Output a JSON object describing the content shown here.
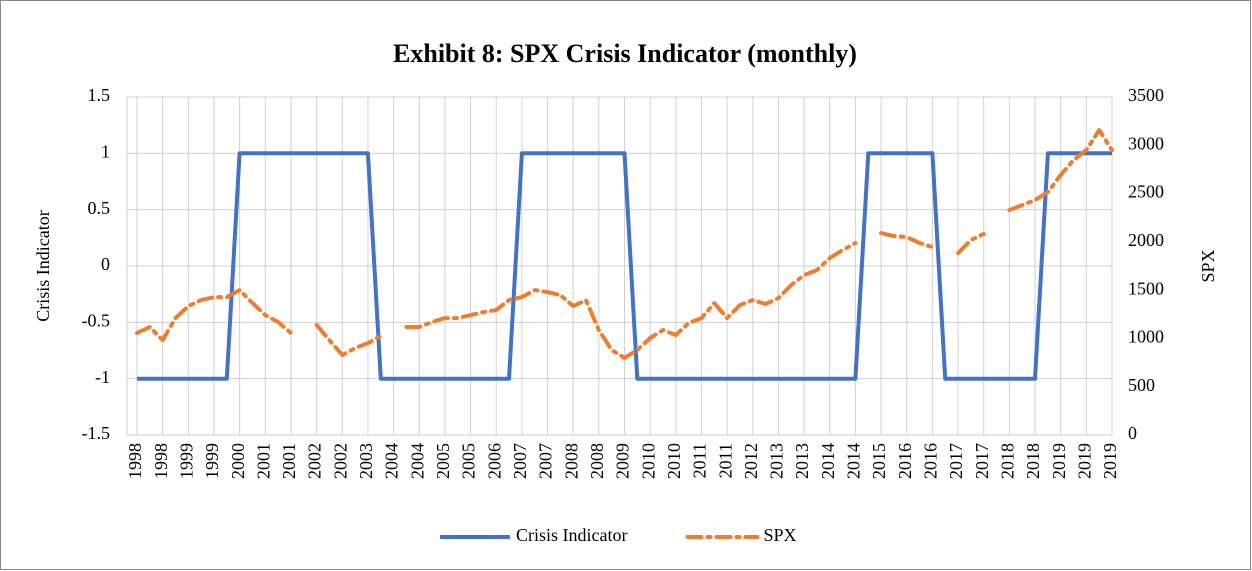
{
  "chart_data": {
    "type": "line",
    "title": "Exhibit 8: SPX Crisis Indicator (monthly)",
    "y_label": "Crisis Indicator",
    "y2_label": "SPX",
    "categories": [
      "1998",
      null,
      "1998",
      null,
      "1999",
      null,
      "1999",
      null,
      "2000",
      null,
      "2001",
      null,
      "2001",
      null,
      "2002",
      null,
      "2002",
      null,
      "2003",
      null,
      "2004",
      null,
      "2004",
      null,
      "2005",
      null,
      "2005",
      null,
      "2006",
      null,
      "2007",
      null,
      "2007",
      null,
      "2008",
      null,
      "2008",
      null,
      "2009",
      null,
      "2010",
      null,
      "2010",
      null,
      "2011",
      null,
      "2011",
      null,
      "2012",
      null,
      "2013",
      null,
      "2013",
      null,
      "2014",
      null,
      "2014",
      null,
      "2015",
      null,
      "2016",
      null,
      "2016",
      null,
      "2017",
      null,
      "2017",
      null,
      "2018",
      null,
      "2018",
      null,
      "2019",
      null,
      "2019",
      null,
      "2019"
    ],
    "series": [
      {
        "name": "Crisis Indicator",
        "color": "#4472c4",
        "axis": "y",
        "values": [
          -1,
          -1,
          -1,
          -1,
          -1,
          -1,
          -1,
          -1,
          1,
          1,
          1,
          1,
          1,
          1,
          1,
          1,
          1,
          1,
          1,
          -1,
          -1,
          -1,
          -1,
          -1,
          -1,
          -1,
          -1,
          -1,
          -1,
          -1,
          1,
          1,
          1,
          1,
          1,
          1,
          1,
          1,
          1,
          -1,
          -1,
          -1,
          -1,
          -1,
          -1,
          -1,
          -1,
          -1,
          -1,
          -1,
          -1,
          -1,
          -1,
          -1,
          -1,
          -1,
          -1,
          1,
          1,
          1,
          1,
          1,
          1,
          -1,
          -1,
          -1,
          -1,
          -1,
          -1,
          -1,
          -1,
          1,
          1,
          1,
          1,
          1,
          1
        ]
      },
      {
        "name": "SPX",
        "color": "#ed7d31",
        "axis": "y2",
        "dashed": true,
        "values": [
          1056,
          1118,
          983,
          1211,
          1335,
          1397,
          1428,
          1428,
          1500,
          1366,
          1242,
          1170,
          1056,
          null,
          1139,
          983,
          828,
          900,
          952,
          1025,
          null,
          1118,
          1118,
          1170,
          1211,
          1211,
          1242,
          1273,
          1294,
          1397,
          1428,
          1500,
          1480,
          1449,
          1335,
          1397,
          1087,
          880,
          797,
          880,
          1004,
          1087,
          1035,
          1159,
          1211,
          1366,
          1211,
          1346,
          1397,
          1356,
          1418,
          1553,
          1656,
          1708,
          1832,
          1915,
          1988,
          null,
          2091,
          2060,
          2050,
          1988,
          1946,
          null,
          1884,
          2019,
          2081,
          null,
          2329,
          2381,
          2433,
          2515,
          2692,
          2847,
          2950,
          3157,
          2950
        ]
      }
    ],
    "ylim": [
      -1.5,
      1.5
    ],
    "yticks": [
      -1.5,
      -1,
      -0.5,
      0,
      0.5,
      1,
      1.5
    ],
    "y2lim": [
      0,
      3500
    ],
    "y2ticks": [
      0,
      500,
      1000,
      1500,
      2000,
      2500,
      3000,
      3500
    ],
    "grid": true,
    "legend": "bottom"
  }
}
